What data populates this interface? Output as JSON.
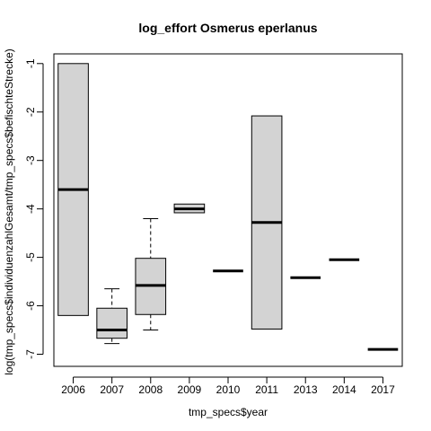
{
  "chart_data": {
    "type": "box",
    "title": "log_effort Osmerus eperlanus",
    "xlabel": "tmp_specs$year",
    "ylabel": "log(tmp_specs$individuenzahlGesamt/tmp_specs$befischteStrecke)",
    "ylim": [
      -7.25,
      -0.8
    ],
    "yticks": [
      -1,
      -2,
      -3,
      -4,
      -5,
      -6,
      -7
    ],
    "categories": [
      "2006",
      "2007",
      "2008",
      "2009",
      "2010",
      "2011",
      "2013",
      "2014",
      "2017"
    ],
    "boxes": [
      {
        "category": "2006",
        "whisker_low": -6.2,
        "q1": -6.2,
        "median": -3.6,
        "q3": -1.0,
        "whisker_high": -1.0
      },
      {
        "category": "2007",
        "whisker_low": -6.78,
        "q1": -6.67,
        "median": -6.5,
        "q3": -6.05,
        "whisker_high": -5.65
      },
      {
        "category": "2008",
        "whisker_low": -6.5,
        "q1": -6.18,
        "median": -5.58,
        "q3": -5.02,
        "whisker_high": -4.2
      },
      {
        "category": "2009",
        "whisker_low": -4.08,
        "q1": -4.08,
        "median": -4.0,
        "q3": -3.9,
        "whisker_high": -3.9
      },
      {
        "category": "2010",
        "whisker_low": -5.28,
        "q1": -5.28,
        "median": -5.28,
        "q3": -5.28,
        "whisker_high": -5.28
      },
      {
        "category": "2011",
        "whisker_low": -6.48,
        "q1": -6.48,
        "median": -4.28,
        "q3": -2.08,
        "whisker_high": -2.08
      },
      {
        "category": "2013",
        "whisker_low": -5.42,
        "q1": -5.42,
        "median": -5.42,
        "q3": -5.42,
        "whisker_high": -5.42
      },
      {
        "category": "2014",
        "whisker_low": -5.05,
        "q1": -5.05,
        "median": -5.05,
        "q3": -5.05,
        "whisker_high": -5.05
      },
      {
        "category": "2017",
        "whisker_low": -6.9,
        "q1": -6.9,
        "median": -6.9,
        "q3": -6.9,
        "whisker_high": -6.9
      }
    ],
    "colors": {
      "box_fill": "#d3d3d3",
      "stroke": "#000000",
      "background": "#ffffff"
    },
    "grid": false,
    "legend": "none"
  }
}
